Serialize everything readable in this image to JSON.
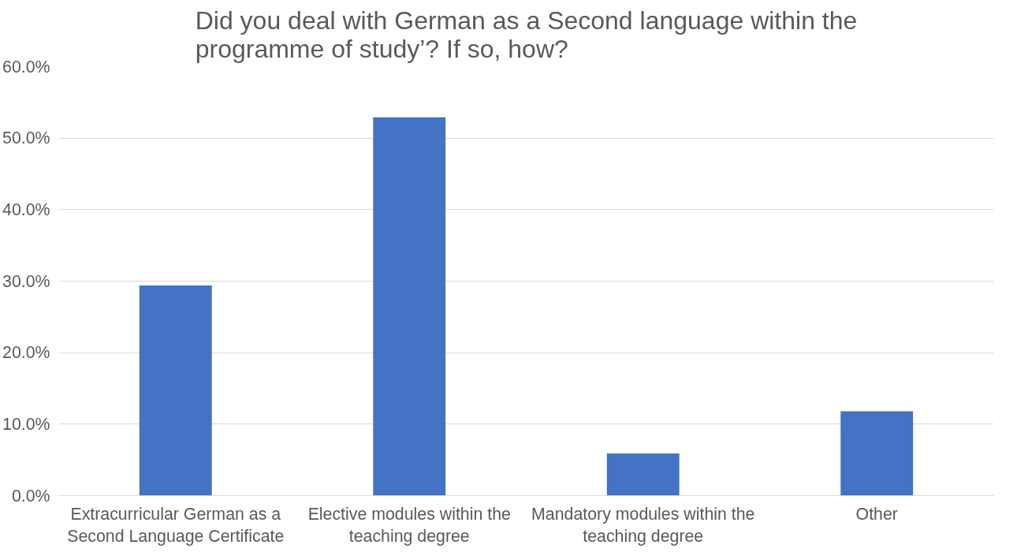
{
  "chart_data": {
    "type": "bar",
    "title": "Did you deal with German as a Second language within the programme of study’? If so, how?",
    "categories": [
      "Extracurricular German as a Second Language Certificate",
      "Elective modules within the teaching degree",
      "Mandatory modules within the teaching degree",
      "Other"
    ],
    "values": [
      29.4,
      52.9,
      5.9,
      11.8
    ],
    "color": "#4472c4",
    "ylim": [
      0,
      60
    ],
    "yticks": [
      {
        "value": 0,
        "label": "0.0%"
      },
      {
        "value": 10,
        "label": "10.0%"
      },
      {
        "value": 20,
        "label": "20.0%"
      },
      {
        "value": 30,
        "label": "30.0%"
      },
      {
        "value": 40,
        "label": "40.0%"
      },
      {
        "value": 50,
        "label": "50.0%"
      },
      {
        "value": 60,
        "label": "60.0%"
      }
    ],
    "grid": "y"
  }
}
